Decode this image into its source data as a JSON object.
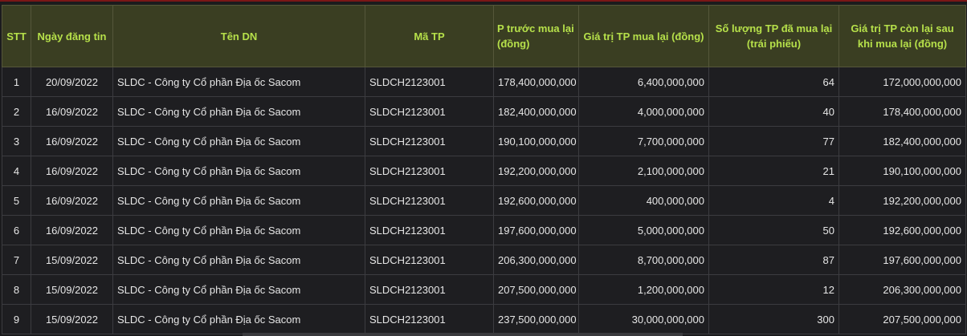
{
  "headers": [
    "STT",
    "Ngày đăng tin",
    "Tên DN",
    "Mã TP",
    "P trước mua lại (đồng)",
    "Giá trị TP mua lại (đồng)",
    "Số lượng TP đã mua lại (trái phiếu)",
    "Giá trị TP còn lại sau khi mua lại (đồng)"
  ],
  "rows": [
    {
      "stt": "1",
      "date": "20/09/2022",
      "company": "SLDC - Công ty Cổ phần Địa ốc Sacom",
      "code": "SLDCH2123001",
      "before": "178,400,000,000",
      "value": "6,400,000,000",
      "qty": "64",
      "remaining": "172,000,000,000"
    },
    {
      "stt": "2",
      "date": "16/09/2022",
      "company": "SLDC - Công ty Cổ phần Địa ốc Sacom",
      "code": "SLDCH2123001",
      "before": "182,400,000,000",
      "value": "4,000,000,000",
      "qty": "40",
      "remaining": "178,400,000,000"
    },
    {
      "stt": "3",
      "date": "16/09/2022",
      "company": "SLDC - Công ty Cổ phần Địa ốc Sacom",
      "code": "SLDCH2123001",
      "before": "190,100,000,000",
      "value": "7,700,000,000",
      "qty": "77",
      "remaining": "182,400,000,000"
    },
    {
      "stt": "4",
      "date": "16/09/2022",
      "company": "SLDC - Công ty Cổ phần Địa ốc Sacom",
      "code": "SLDCH2123001",
      "before": "192,200,000,000",
      "value": "2,100,000,000",
      "qty": "21",
      "remaining": "190,100,000,000"
    },
    {
      "stt": "5",
      "date": "16/09/2022",
      "company": "SLDC - Công ty Cổ phần Địa ốc Sacom",
      "code": "SLDCH2123001",
      "before": "192,600,000,000",
      "value": "400,000,000",
      "qty": "4",
      "remaining": "192,200,000,000"
    },
    {
      "stt": "6",
      "date": "16/09/2022",
      "company": "SLDC - Công ty Cổ phần Địa ốc Sacom",
      "code": "SLDCH2123001",
      "before": "197,600,000,000",
      "value": "5,000,000,000",
      "qty": "50",
      "remaining": "192,600,000,000"
    },
    {
      "stt": "7",
      "date": "15/09/2022",
      "company": "SLDC - Công ty Cổ phần Địa ốc Sacom",
      "code": "SLDCH2123001",
      "before": "206,300,000,000",
      "value": "8,700,000,000",
      "qty": "87",
      "remaining": "197,600,000,000"
    },
    {
      "stt": "8",
      "date": "15/09/2022",
      "company": "SLDC - Công ty Cổ phần Địa ốc Sacom",
      "code": "SLDCH2123001",
      "before": "207,500,000,000",
      "value": "1,200,000,000",
      "qty": "12",
      "remaining": "206,300,000,000"
    },
    {
      "stt": "9",
      "date": "15/09/2022",
      "company": "SLDC - Công ty Cổ phần Địa ốc Sacom",
      "code": "SLDCH2123001",
      "before": "237,500,000,000",
      "value": "30,000,000,000",
      "qty": "300",
      "remaining": "207,500,000,000"
    }
  ],
  "colors": {
    "header_bg": "#3a3e22",
    "header_text": "#b6e04a",
    "row_bg": "#1e1e21",
    "row_text": "#e6e6e6",
    "top_border": "#7a1616"
  }
}
